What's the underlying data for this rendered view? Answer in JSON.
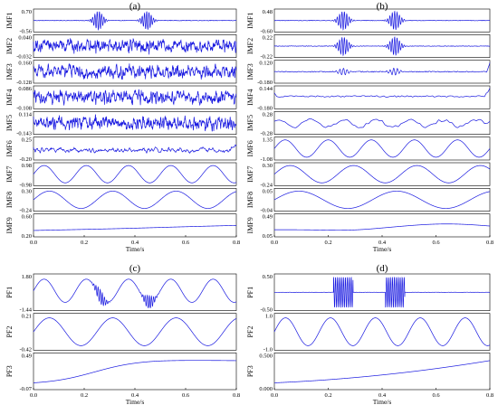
{
  "chart_data": [
    {
      "type": "line",
      "panel": "(a)",
      "xlim": [
        0,
        0.8
      ],
      "x_ticks": [
        "0.0",
        "0.2",
        "0.4",
        "0.6",
        "0.8"
      ],
      "xlabel": "Time/s",
      "subplots": [
        {
          "label": "IMF1",
          "ytop": "0.70",
          "ybot": "-0.56",
          "ylim": [
            -0.56,
            0.7
          ],
          "signal": "bursts",
          "baseline": 0.07
        },
        {
          "label": "IMF2",
          "ytop": "0.040",
          "ybot": "-0.032",
          "ylim": [
            -0.032,
            0.04
          ],
          "signal": "noise"
        },
        {
          "label": "IMF3",
          "ytop": "0.160",
          "ybot": "-0.128",
          "ylim": [
            -0.128,
            0.16
          ],
          "signal": "noise"
        },
        {
          "label": "IMF4",
          "ytop": "0.086",
          "ybot": "-0.108",
          "ylim": [
            -0.108,
            0.086
          ],
          "signal": "noise"
        },
        {
          "label": "IMF5",
          "ytop": "0.114",
          "ybot": "-0.143",
          "ylim": [
            -0.143,
            0.114
          ],
          "signal": "noise"
        },
        {
          "label": "IMF6",
          "ytop": "0.25",
          "ybot": "-0.20",
          "ylim": [
            -0.2,
            0.25
          ],
          "signal": "low-noise"
        },
        {
          "label": "IMF7",
          "ytop": "0.98",
          "ybot": "-0.98",
          "ylim": [
            -0.98,
            0.98
          ],
          "signal": "sine",
          "cycles": 4.8
        },
        {
          "label": "IMF8",
          "ytop": "0.30",
          "ybot": "-0.24",
          "ylim": [
            -0.24,
            0.3
          ],
          "signal": "sine",
          "cycles": 3.2
        },
        {
          "label": "IMF9",
          "ytop": "0.60",
          "ybot": "0.20",
          "ylim": [
            0.2,
            0.6
          ],
          "signal": "trend-a"
        }
      ]
    },
    {
      "type": "line",
      "panel": "(b)",
      "xlim": [
        0,
        0.8
      ],
      "x_ticks": [
        "0.0",
        "0.2",
        "0.4",
        "0.6",
        "0.8"
      ],
      "xlabel": "Time/s",
      "subplots": [
        {
          "label": "IMF1",
          "ytop": "0.48",
          "ybot": "-0.60",
          "ylim": [
            -0.6,
            0.48
          ],
          "signal": "bursts",
          "baseline": -0.06
        },
        {
          "label": "IMF2",
          "ytop": "0.22",
          "ybot": "-0.22",
          "ylim": [
            -0.22,
            0.22
          ],
          "signal": "bursts",
          "baseline": 0.0
        },
        {
          "label": "IMF3",
          "ytop": "0.120",
          "ybot": "-0.180",
          "ylim": [
            -0.18,
            0.12
          ],
          "signal": "small-bursts"
        },
        {
          "label": "IMF4",
          "ytop": "0.144",
          "ybot": "-0.180",
          "ylim": [
            -0.18,
            0.144
          ],
          "signal": "flat-edge"
        },
        {
          "label": "IMF5",
          "ytop": "0.28",
          "ybot": "-0.28",
          "ylim": [
            -0.28,
            0.28
          ],
          "signal": "wavy"
        },
        {
          "label": "IMF6",
          "ytop": "1.35",
          "ybot": "-1.08",
          "ylim": [
            -1.08,
            1.35
          ],
          "signal": "sine",
          "cycles": 5.0
        },
        {
          "label": "IMF7",
          "ytop": "0.30",
          "ybot": "-0.24",
          "ylim": [
            -0.24,
            0.3
          ],
          "signal": "sine",
          "cycles": 3.4
        },
        {
          "label": "IMF8",
          "ytop": "0.05",
          "ybot": "-0.04",
          "ylim": [
            -0.04,
            0.05
          ],
          "signal": "sine",
          "cycles": 2.2
        },
        {
          "label": "IMF9",
          "ytop": "0.49",
          "ybot": "0.05",
          "ylim": [
            0.05,
            0.49
          ],
          "signal": "trend-b"
        }
      ]
    },
    {
      "type": "line",
      "panel": "(c)",
      "xlim": [
        0,
        0.8
      ],
      "x_ticks": [
        "0.0",
        "0.2",
        "0.4",
        "0.6",
        "0.8"
      ],
      "xlabel": "Time/s",
      "subplots": [
        {
          "label": "PF1",
          "ytop": "1.80",
          "ybot": "-1.44",
          "ylim": [
            -1.44,
            1.8
          ],
          "signal": "sine-bursts",
          "cycles": 4.8
        },
        {
          "label": "PF2",
          "ytop": "0.21",
          "ybot": "-0.42",
          "ylim": [
            -0.42,
            0.21
          ],
          "signal": "sine",
          "cycles": 3.2
        },
        {
          "label": "PF3",
          "ytop": "0.49",
          "ybot": "-0.07",
          "ylim": [
            -0.07,
            0.49
          ],
          "signal": "trend-c"
        }
      ]
    },
    {
      "type": "line",
      "panel": "(d)",
      "xlim": [
        0,
        0.8
      ],
      "x_ticks": [
        "0.0",
        "0.2",
        "0.4",
        "0.6",
        "0.8"
      ],
      "xlabel": "Time/s",
      "subplots": [
        {
          "label": "PF1",
          "ytop": "0.50",
          "ybot": "-0.50",
          "ylim": [
            -0.5,
            0.5
          ],
          "signal": "big-bursts",
          "baseline": 0.0
        },
        {
          "label": "PF2",
          "ytop": "1.0",
          "ybot": "-1.0",
          "ylim": [
            -1.1,
            1.1
          ],
          "signal": "sine",
          "cycles": 4.8
        },
        {
          "label": "PF3",
          "ytop": "0.500",
          "ybot": "0.000",
          "ylim": [
            0.0,
            0.55
          ],
          "signal": "trend-d"
        }
      ]
    }
  ]
}
